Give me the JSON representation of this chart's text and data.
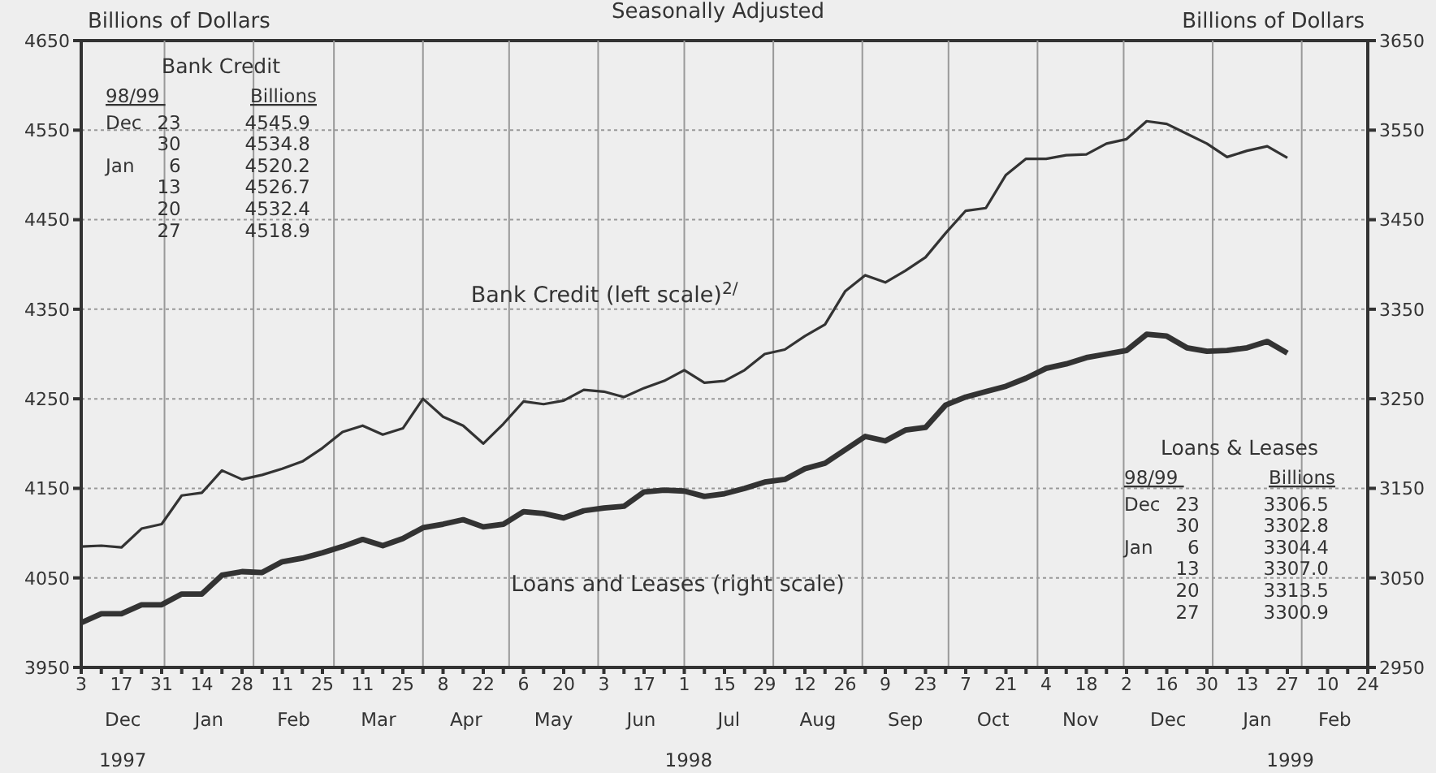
{
  "chart_data": {
    "type": "line",
    "title": "Seasonally Adjusted",
    "ylabel": "Billions of Dollars",
    "y2label": "Billions of Dollars",
    "x": [
      "1997-12-03",
      "1997-12-10",
      "1997-12-17",
      "1997-12-24",
      "1997-12-31",
      "1998-01-07",
      "1998-01-14",
      "1998-01-21",
      "1998-01-28",
      "1998-02-04",
      "1998-02-11",
      "1998-02-18",
      "1998-02-25",
      "1998-03-04",
      "1998-03-11",
      "1998-03-18",
      "1998-03-25",
      "1998-04-01",
      "1998-04-08",
      "1998-04-15",
      "1998-04-22",
      "1998-04-29",
      "1998-05-06",
      "1998-05-13",
      "1998-05-20",
      "1998-05-27",
      "1998-06-03",
      "1998-06-10",
      "1998-06-17",
      "1998-06-24",
      "1998-07-01",
      "1998-07-08",
      "1998-07-15",
      "1998-07-22",
      "1998-07-29",
      "1998-08-05",
      "1998-08-12",
      "1998-08-19",
      "1998-08-26",
      "1998-09-02",
      "1998-09-09",
      "1998-09-16",
      "1998-09-23",
      "1998-09-30",
      "1998-10-07",
      "1998-10-14",
      "1998-10-21",
      "1998-10-28",
      "1998-11-04",
      "1998-11-11",
      "1998-11-18",
      "1998-11-25",
      "1998-12-02",
      "1998-12-09",
      "1998-12-16",
      "1998-12-23",
      "1998-12-30",
      "1999-01-06",
      "1999-01-13",
      "1999-01-20",
      "1999-01-27"
    ],
    "series": [
      {
        "name": "Bank Credit (left scale)$^{2/}$",
        "color": "#333333",
        "values": [
          4085,
          4086,
          4084,
          4105,
          4110,
          4142,
          4145,
          4170,
          4160,
          4165,
          4172,
          4180,
          4195,
          4213,
          4220,
          4210,
          4217,
          4250,
          4230,
          4220,
          4200,
          4222,
          4247,
          4244,
          4248,
          4260,
          4258,
          4252,
          4262,
          4270,
          4282,
          4268,
          4270,
          4282,
          4300,
          4305,
          4320,
          4333,
          4370,
          4388,
          4380,
          4393,
          4408,
          4435,
          4460,
          4463,
          4500,
          4518,
          4518,
          4522,
          4523,
          4535,
          4540,
          4560,
          4557,
          4546,
          4535,
          4520,
          4527,
          4532,
          4519
        ]
      },
      {
        "name": "Loans and Leases (right scale)",
        "color": "#333333",
        "axis": "y2",
        "values": [
          3000,
          3010,
          3010,
          3020,
          3020,
          3032,
          3032,
          3053,
          3057,
          3056,
          3068,
          3072,
          3078,
          3085,
          3093,
          3086,
          3094,
          3106,
          3110,
          3115,
          3107,
          3110,
          3124,
          3122,
          3117,
          3125,
          3128,
          3130,
          3146,
          3148,
          3147,
          3141,
          3144,
          3150,
          3157,
          3160,
          3172,
          3178,
          3193,
          3208,
          3203,
          3215,
          3218,
          3243,
          3252,
          3258,
          3264,
          3273,
          3284,
          3289,
          3296,
          3300,
          3304,
          3322,
          3320,
          3307,
          3303,
          3304,
          3307,
          3314,
          3301
        ]
      }
    ],
    "xlim": [
      "1997-12-03",
      "1999-02-24"
    ],
    "xticks": [
      {
        "value": "1997-12-03",
        "label": "3"
      },
      {
        "value": "1997-12-10",
        "label": null
      },
      {
        "value": "1997-12-17",
        "label": "17"
      },
      {
        "value": "1997-12-24",
        "label": null
      },
      {
        "value": "1997-12-31",
        "label": "31"
      },
      {
        "value": "1998-01-07",
        "label": null
      },
      {
        "value": "1998-01-14",
        "label": "14"
      },
      {
        "value": "1998-01-21",
        "label": null
      },
      {
        "value": "1998-01-28",
        "label": "28"
      },
      {
        "value": "1998-02-04",
        "label": null
      },
      {
        "value": "1998-02-11",
        "label": "11"
      },
      {
        "value": "1998-02-18",
        "label": null
      },
      {
        "value": "1998-02-25",
        "label": "25"
      },
      {
        "value": "1998-03-04",
        "label": null
      },
      {
        "value": "1998-03-11",
        "label": "11"
      },
      {
        "value": "1998-03-18",
        "label": null
      },
      {
        "value": "1998-03-25",
        "label": "25"
      },
      {
        "value": "1998-04-01",
        "label": null
      },
      {
        "value": "1998-04-08",
        "label": "8"
      },
      {
        "value": "1998-04-15",
        "label": null
      },
      {
        "value": "1998-04-22",
        "label": "22"
      },
      {
        "value": "1998-04-29",
        "label": null
      },
      {
        "value": "1998-05-06",
        "label": "6"
      },
      {
        "value": "1998-05-13",
        "label": null
      },
      {
        "value": "1998-05-20",
        "label": "20"
      },
      {
        "value": "1998-05-27",
        "label": null
      },
      {
        "value": "1998-06-03",
        "label": "3"
      },
      {
        "value": "1998-06-10",
        "label": null
      },
      {
        "value": "1998-06-17",
        "label": "17"
      },
      {
        "value": "1998-06-24",
        "label": null
      },
      {
        "value": "1998-07-01",
        "label": "1"
      },
      {
        "value": "1998-07-08",
        "label": null
      },
      {
        "value": "1998-07-15",
        "label": "15"
      },
      {
        "value": "1998-07-22",
        "label": null
      },
      {
        "value": "1998-07-29",
        "label": "29"
      },
      {
        "value": "1998-08-05",
        "label": null
      },
      {
        "value": "1998-08-12",
        "label": "12"
      },
      {
        "value": "1998-08-19",
        "label": null
      },
      {
        "value": "1998-08-26",
        "label": "26"
      },
      {
        "value": "1998-09-02",
        "label": null
      },
      {
        "value": "1998-09-09",
        "label": "9"
      },
      {
        "value": "1998-09-16",
        "label": null
      },
      {
        "value": "1998-09-23",
        "label": "23"
      },
      {
        "value": "1998-09-30",
        "label": null
      },
      {
        "value": "1998-10-07",
        "label": "7"
      },
      {
        "value": "1998-10-14",
        "label": null
      },
      {
        "value": "1998-10-21",
        "label": "21"
      },
      {
        "value": "1998-10-28",
        "label": null
      },
      {
        "value": "1998-11-04",
        "label": "4"
      },
      {
        "value": "1998-11-11",
        "label": null
      },
      {
        "value": "1998-11-18",
        "label": "18"
      },
      {
        "value": "1998-11-25",
        "label": null
      },
      {
        "value": "1998-12-02",
        "label": "2"
      },
      {
        "value": "1998-12-09",
        "label": null
      },
      {
        "value": "1998-12-16",
        "label": "16"
      },
      {
        "value": "1998-12-23",
        "label": null
      },
      {
        "value": "1998-12-30",
        "label": "30"
      },
      {
        "value": "1999-01-06",
        "label": null
      },
      {
        "value": "1999-01-13",
        "label": "13"
      },
      {
        "value": "1999-01-20",
        "label": null
      },
      {
        "value": "1999-01-27",
        "label": "27"
      },
      {
        "value": "1999-02-03",
        "label": null
      },
      {
        "value": "1999-02-10",
        "label": "10"
      },
      {
        "value": "1999-02-17",
        "label": null
      },
      {
        "value": "1999-02-24",
        "label": "24"
      }
    ],
    "ylim": [
      3950,
      4650
    ],
    "yticks": [
      3950,
      4050,
      4150,
      4250,
      4350,
      4450,
      4550,
      4650
    ],
    "y2lim": [
      2950,
      3650
    ],
    "y2ticks": [
      2950,
      3050,
      3150,
      3250,
      3350,
      3450,
      3550,
      3650
    ],
    "grid": "y",
    "ref_lines": [
      {
        "axis": "x",
        "value": "1998-01-01",
        "color": "#999999"
      },
      {
        "axis": "x",
        "value": "1998-02-01",
        "color": "#999999"
      },
      {
        "axis": "x",
        "value": "1998-03-01",
        "color": "#999999"
      },
      {
        "axis": "x",
        "value": "1998-04-01",
        "color": "#999999"
      },
      {
        "axis": "x",
        "value": "1998-05-01",
        "color": "#999999"
      },
      {
        "axis": "x",
        "value": "1998-06-01",
        "color": "#999999"
      },
      {
        "axis": "x",
        "value": "1998-07-01",
        "color": "#999999"
      },
      {
        "axis": "x",
        "value": "1998-08-01",
        "color": "#999999"
      },
      {
        "axis": "x",
        "value": "1998-09-01",
        "color": "#999999"
      },
      {
        "axis": "x",
        "value": "1998-10-01",
        "color": "#999999"
      },
      {
        "axis": "x",
        "value": "1998-11-01",
        "color": "#999999"
      },
      {
        "axis": "x",
        "value": "1998-12-01",
        "color": "#999999"
      },
      {
        "axis": "x",
        "value": "1999-01-01",
        "color": "#999999"
      },
      {
        "axis": "x",
        "value": "1999-02-01",
        "color": "#999999"
      }
    ],
    "annotations": [
      "Bank Credit\n98/99 Billions\nDec 23 4545.9\n30 4534.8\nJan 6 4520.2\n13 4526.7\n20 4532.4\n27 4518.9",
      "Loans & Leases\n98/99 Billions\nDec 23 3306.5\n30 3302.8\nJan 6 3304.4\n13 3307.0\n20 3313.5\n27 3300.9",
      "Dec",
      "Jan",
      "Feb",
      "Mar",
      "Apr",
      "May",
      "Jun",
      "Jul",
      "Aug",
      "Sep",
      "Oct",
      "Nov",
      "Dec",
      "Jan",
      "Feb",
      "1997",
      "1998",
      "1999"
    ]
  }
}
